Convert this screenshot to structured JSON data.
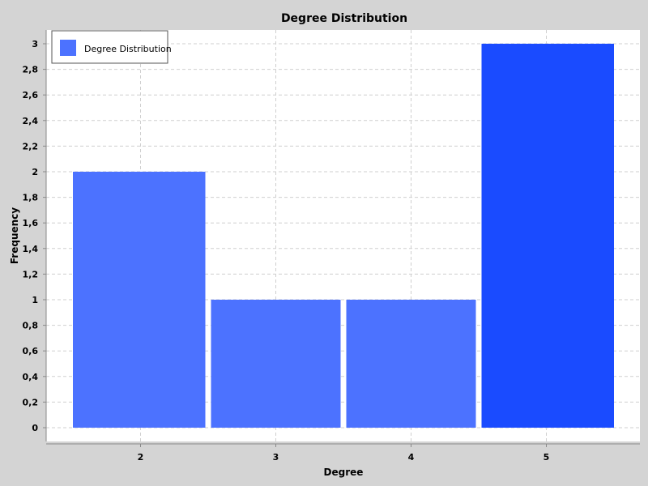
{
  "chart_data": {
    "type": "bar",
    "title": "Degree Distribution",
    "xlabel": "Degree",
    "ylabel": "Frequency",
    "categories": [
      "2",
      "3",
      "4",
      "5"
    ],
    "series": [
      {
        "name": "Degree Distribution",
        "values": [
          2,
          1,
          1,
          3
        ],
        "colors": [
          "#4c72ff",
          "#4c72ff",
          "#4c72ff",
          "#1a4bff"
        ]
      }
    ],
    "ylim": [
      0,
      3
    ],
    "yticks": [
      0,
      0.2,
      0.4,
      0.6,
      0.8,
      1,
      1.2,
      1.4,
      1.6,
      1.8,
      2,
      2.2,
      2.4,
      2.6,
      2.8,
      3
    ],
    "ytick_labels": [
      "0",
      "0,2",
      "0,4",
      "0,6",
      "0,8",
      "1",
      "1,2",
      "1,4",
      "1,6",
      "1,8",
      "2",
      "2,2",
      "2,4",
      "2,6",
      "2,8",
      "3"
    ],
    "grid": true,
    "legend_position": "top-left",
    "colors": {
      "background": "#d4d4d4",
      "plot_background": "#ffffff",
      "bar": "#4c72ff",
      "bar_highlight": "#1a4bff",
      "grid": "#cfcfcf",
      "legend_swatch": "#4c72ff"
    }
  }
}
